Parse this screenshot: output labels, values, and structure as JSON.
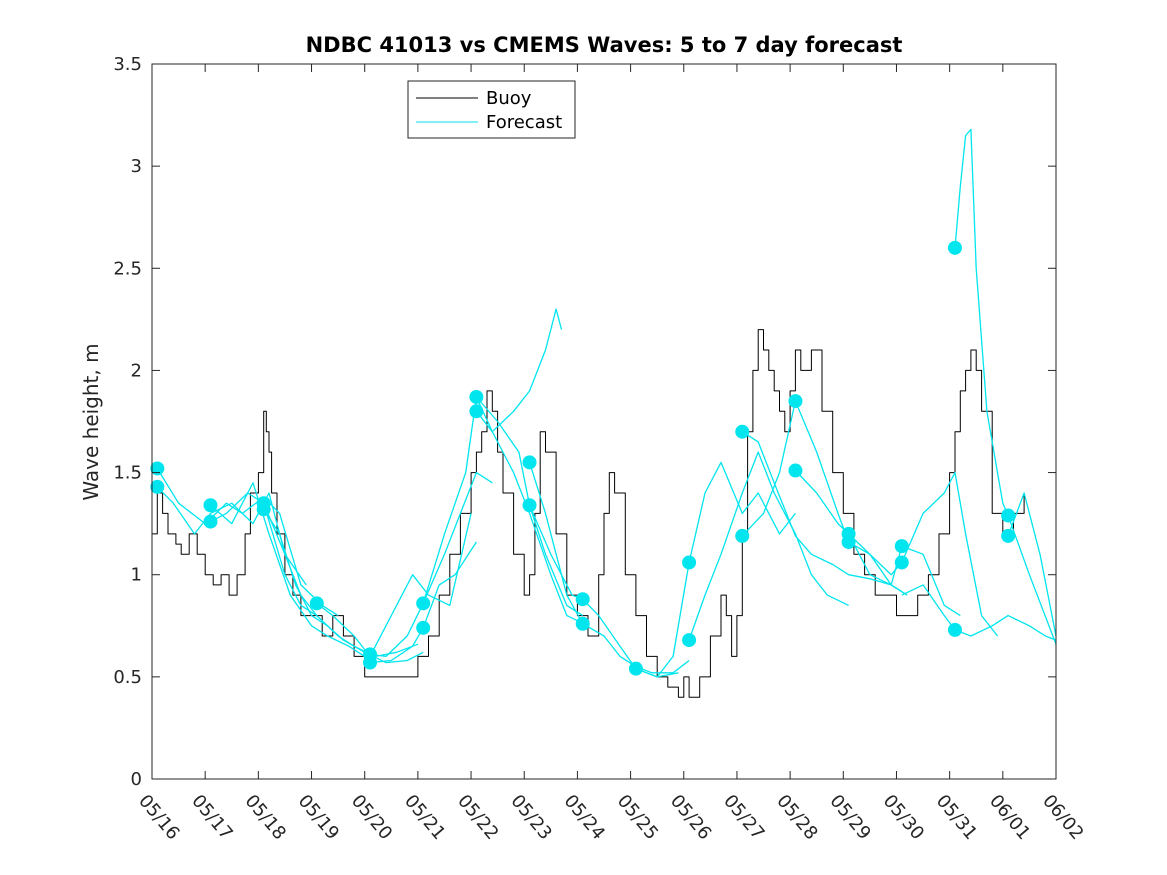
{
  "chart_data": {
    "type": "line",
    "title": "NDBC 41013 vs CMEMS Waves: 5 to 7 day forecast",
    "xlabel": "",
    "ylabel": "Wave height, m",
    "ylim": [
      0,
      3.5
    ],
    "xlim": [
      0,
      17
    ],
    "yticks": [
      "0",
      "0.5",
      "1",
      "1.5",
      "2",
      "2.5",
      "3",
      "3.5"
    ],
    "xticks": [
      "05/16",
      "05/17",
      "05/18",
      "05/19",
      "05/20",
      "05/21",
      "05/22",
      "05/23",
      "05/24",
      "05/25",
      "05/26",
      "05/27",
      "05/28",
      "05/29",
      "05/30",
      "05/31",
      "06/01",
      "06/02"
    ],
    "legend": {
      "position": "top-left",
      "entries": [
        "Buoy",
        "Forecast"
      ]
    },
    "colors": {
      "buoy": "#000000",
      "forecast": "#00e5ee"
    },
    "series": [
      {
        "name": "Buoy",
        "x": [
          0.0,
          0.1,
          0.2,
          0.3,
          0.45,
          0.55,
          0.7,
          0.85,
          1.0,
          1.15,
          1.3,
          1.45,
          1.6,
          1.75,
          1.85,
          2.0,
          2.1,
          2.15,
          2.2,
          2.25,
          2.35,
          2.5,
          2.65,
          2.8,
          3.0,
          3.2,
          3.4,
          3.6,
          3.8,
          4.0,
          4.2,
          4.4,
          4.7,
          5.0,
          5.2,
          5.4,
          5.6,
          5.8,
          6.0,
          6.1,
          6.2,
          6.3,
          6.4,
          6.5,
          6.6,
          6.8,
          7.0,
          7.1,
          7.2,
          7.3,
          7.4,
          7.6,
          7.8,
          8.0,
          8.2,
          8.4,
          8.5,
          8.6,
          8.7,
          8.9,
          9.1,
          9.3,
          9.5,
          9.7,
          9.9,
          10.0,
          10.1,
          10.3,
          10.5,
          10.7,
          10.8,
          10.9,
          11.0,
          11.1,
          11.2,
          11.3,
          11.4,
          11.5,
          11.6,
          11.7,
          11.8,
          11.9,
          12.0,
          12.1,
          12.2,
          12.3,
          12.4,
          12.6,
          12.8,
          13.0,
          13.2,
          13.4,
          13.6,
          13.8,
          14.0,
          14.2,
          14.4,
          14.6,
          14.8,
          15.0,
          15.1,
          15.2,
          15.3,
          15.4,
          15.5,
          15.6,
          15.8,
          16.0,
          16.2,
          16.4
        ],
        "y": [
          1.2,
          1.4,
          1.3,
          1.2,
          1.15,
          1.1,
          1.2,
          1.1,
          1.0,
          0.95,
          1.0,
          0.9,
          1.0,
          1.2,
          1.4,
          1.5,
          1.8,
          1.7,
          1.6,
          1.4,
          1.2,
          1.0,
          0.9,
          0.8,
          0.8,
          0.7,
          0.8,
          0.7,
          0.6,
          0.5,
          0.5,
          0.5,
          0.5,
          0.6,
          0.7,
          0.9,
          1.1,
          1.3,
          1.5,
          1.6,
          1.7,
          1.9,
          1.8,
          1.6,
          1.4,
          1.1,
          0.9,
          1.0,
          1.3,
          1.7,
          1.6,
          1.2,
          0.9,
          0.8,
          0.7,
          1.0,
          1.3,
          1.5,
          1.4,
          1.0,
          0.8,
          0.6,
          0.5,
          0.45,
          0.4,
          0.5,
          0.4,
          0.5,
          0.7,
          0.9,
          0.8,
          0.6,
          0.8,
          1.2,
          1.7,
          2.0,
          2.2,
          2.1,
          2.0,
          1.9,
          1.8,
          1.7,
          1.9,
          2.1,
          2.0,
          2.0,
          2.1,
          1.8,
          1.5,
          1.3,
          1.1,
          1.0,
          0.9,
          0.9,
          0.8,
          0.8,
          0.9,
          1.0,
          1.2,
          1.5,
          1.7,
          1.9,
          2.0,
          2.1,
          2.0,
          1.8,
          1.3,
          1.2,
          1.3,
          1.4
        ]
      },
      {
        "name": "",
        "x": [
          0.1,
          0.5,
          1.0,
          1.4,
          1.7,
          2.1,
          2.4,
          2.8,
          3.2,
          3.5
        ],
        "y": [
          1.52,
          1.35,
          1.25,
          1.35,
          1.3,
          1.38,
          1.3,
          0.95,
          0.85,
          0.8
        ]
      },
      {
        "name": "",
        "x": [
          0.1,
          0.4,
          0.8,
          1.1,
          1.5,
          1.9,
          2.2,
          2.5,
          2.9
        ],
        "y": [
          1.43,
          1.35,
          1.2,
          1.3,
          1.35,
          1.25,
          1.4,
          1.1,
          0.95
        ]
      },
      {
        "name": "",
        "x": [
          1.1,
          1.5,
          1.9,
          2.2,
          2.6,
          3.0,
          3.3,
          3.7,
          4.0
        ],
        "y": [
          1.34,
          1.25,
          1.45,
          1.2,
          0.9,
          0.75,
          0.7,
          0.65,
          0.6
        ]
      },
      {
        "name": "",
        "x": [
          1.1,
          1.4,
          1.8,
          2.1,
          2.5,
          2.8,
          3.1
        ],
        "y": [
          1.26,
          1.3,
          1.4,
          1.35,
          1.0,
          0.85,
          0.8
        ]
      },
      {
        "name": "",
        "x": [
          2.1,
          2.5,
          2.8,
          3.1,
          3.5,
          3.8,
          4.2,
          4.6,
          5.0
        ],
        "y": [
          1.35,
          1.1,
          0.9,
          0.8,
          0.7,
          0.65,
          0.6,
          0.62,
          0.66
        ]
      },
      {
        "name": "",
        "x": [
          2.1,
          2.4,
          2.7,
          3.0,
          3.3,
          3.6,
          4.0,
          4.4,
          4.8,
          5.1
        ],
        "y": [
          1.32,
          1.2,
          0.95,
          0.8,
          0.75,
          0.68,
          0.62,
          0.57,
          0.58,
          0.62
        ]
      },
      {
        "name": "",
        "x": [
          3.1,
          3.4,
          3.8,
          4.1,
          4.5,
          4.9,
          5.2,
          5.6,
          6.0
        ],
        "y": [
          0.86,
          0.8,
          0.7,
          0.6,
          0.8,
          1.0,
          0.9,
          0.85,
          1.3
        ]
      },
      {
        "name": "",
        "x": [
          4.1,
          4.4,
          4.8,
          5.1,
          5.5,
          5.8,
          6.1,
          6.4
        ],
        "y": [
          0.61,
          0.6,
          0.7,
          0.86,
          1.1,
          1.3,
          1.5,
          1.45
        ]
      },
      {
        "name": "",
        "x": [
          4.1,
          4.5,
          4.9,
          5.1,
          5.4,
          5.7,
          6.1
        ],
        "y": [
          0.57,
          0.58,
          0.65,
          0.74,
          0.95,
          1.0,
          1.16
        ]
      },
      {
        "name": "",
        "x": [
          5.1,
          5.5,
          5.9,
          6.1,
          6.4,
          6.8,
          7.1,
          7.4,
          7.6,
          7.7
        ],
        "y": [
          0.86,
          1.2,
          1.5,
          1.87,
          1.7,
          1.8,
          1.9,
          2.1,
          2.3,
          2.2
        ]
      },
      {
        "name": "",
        "x": [
          6.1,
          6.4,
          6.8,
          7.1,
          7.5,
          7.8,
          8.2
        ],
        "y": [
          1.8,
          1.7,
          1.5,
          1.3,
          1.0,
          0.8,
          0.75
        ]
      },
      {
        "name": "",
        "x": [
          6.1,
          6.5,
          6.9,
          7.1,
          7.4,
          7.8,
          8.1
        ],
        "y": [
          1.87,
          1.75,
          1.6,
          1.34,
          1.1,
          0.85,
          0.8
        ]
      },
      {
        "name": "",
        "x": [
          7.1,
          7.4,
          7.8,
          8.1,
          8.5,
          8.8,
          9.1,
          9.4,
          9.8,
          10.1
        ],
        "y": [
          1.55,
          1.3,
          0.9,
          0.76,
          0.7,
          0.6,
          0.55,
          0.52,
          0.52,
          0.58
        ]
      },
      {
        "name": "",
        "x": [
          7.1,
          7.5,
          7.9,
          8.1,
          8.4,
          8.8,
          9.1,
          9.5,
          9.9
        ],
        "y": [
          1.34,
          1.1,
          0.9,
          0.88,
          0.8,
          0.65,
          0.54,
          0.5,
          0.52
        ]
      },
      {
        "name": "",
        "x": [
          9.1,
          9.5,
          9.8,
          10.1,
          10.4,
          10.7,
          11.1,
          11.4,
          11.8,
          12.1
        ],
        "y": [
          0.54,
          0.5,
          0.6,
          1.06,
          1.4,
          1.55,
          1.3,
          1.4,
          1.2,
          1.3
        ]
      },
      {
        "name": "",
        "x": [
          10.1,
          10.4,
          10.7,
          11.1,
          11.4,
          11.7,
          12.1,
          12.4,
          12.7,
          13.1
        ],
        "y": [
          0.68,
          0.9,
          1.1,
          1.4,
          1.6,
          1.4,
          1.2,
          1.0,
          0.9,
          0.85
        ]
      },
      {
        "name": "",
        "x": [
          11.1,
          11.4,
          11.7,
          12.1,
          12.4,
          12.8,
          13.1,
          13.5,
          13.9,
          14.2
        ],
        "y": [
          1.7,
          1.65,
          1.45,
          1.19,
          1.1,
          1.05,
          1.0,
          0.98,
          0.95,
          0.9
        ]
      },
      {
        "name": "",
        "x": [
          11.1,
          11.5,
          11.8,
          12.1,
          12.5,
          12.9,
          13.1,
          13.5,
          13.9,
          14.2
        ],
        "y": [
          1.19,
          1.3,
          1.5,
          1.85,
          1.6,
          1.3,
          1.16,
          1.1,
          0.95,
          0.9
        ]
      },
      {
        "name": "",
        "x": [
          12.1,
          12.5,
          12.9,
          13.1,
          13.5,
          13.9,
          14.1,
          14.5,
          14.9,
          15.2
        ],
        "y": [
          1.51,
          1.4,
          1.25,
          1.2,
          1.0,
          0.95,
          1.14,
          1.1,
          0.85,
          0.8
        ]
      },
      {
        "name": "",
        "x": [
          13.1,
          13.5,
          13.9,
          14.1,
          14.5,
          14.9,
          15.1,
          15.3,
          15.6,
          15.9
        ],
        "y": [
          1.2,
          1.1,
          1.0,
          1.06,
          1.3,
          1.4,
          1.5,
          1.2,
          0.8,
          0.7
        ]
      },
      {
        "name": "",
        "x": [
          14.1,
          14.5,
          14.9,
          15.1,
          15.4,
          15.8,
          16.1,
          16.5,
          16.8,
          17.0
        ],
        "y": [
          0.9,
          0.95,
          0.8,
          0.73,
          0.7,
          0.75,
          0.8,
          0.75,
          0.7,
          0.68
        ]
      },
      {
        "name": "",
        "x": [
          15.1,
          15.2,
          15.3,
          15.4,
          15.5,
          15.7,
          16.0,
          16.1,
          16.5,
          17.0
        ],
        "y": [
          2.6,
          2.9,
          3.15,
          3.18,
          2.5,
          1.8,
          1.35,
          1.29,
          1.0,
          0.66
        ]
      },
      {
        "name": "",
        "x": [
          16.1,
          16.4,
          16.7,
          17.0
        ],
        "y": [
          1.19,
          1.4,
          1.1,
          0.7
        ]
      }
    ],
    "markers": {
      "x": [
        0.1,
        0.1,
        1.1,
        1.1,
        2.1,
        2.1,
        3.1,
        4.1,
        4.1,
        5.1,
        5.1,
        6.1,
        6.1,
        7.1,
        7.1,
        8.1,
        8.1,
        9.1,
        10.1,
        10.1,
        11.1,
        11.1,
        12.1,
        12.1,
        13.1,
        13.1,
        14.1,
        14.1,
        15.1,
        15.1,
        16.1,
        16.1
      ],
      "y": [
        1.52,
        1.43,
        1.34,
        1.26,
        1.35,
        1.32,
        0.86,
        0.61,
        0.57,
        0.86,
        0.74,
        1.87,
        1.8,
        1.55,
        1.34,
        0.88,
        0.76,
        0.54,
        1.06,
        0.68,
        1.7,
        1.19,
        1.85,
        1.51,
        1.2,
        1.16,
        1.14,
        1.06,
        2.6,
        0.73,
        1.29,
        1.19
      ]
    }
  }
}
